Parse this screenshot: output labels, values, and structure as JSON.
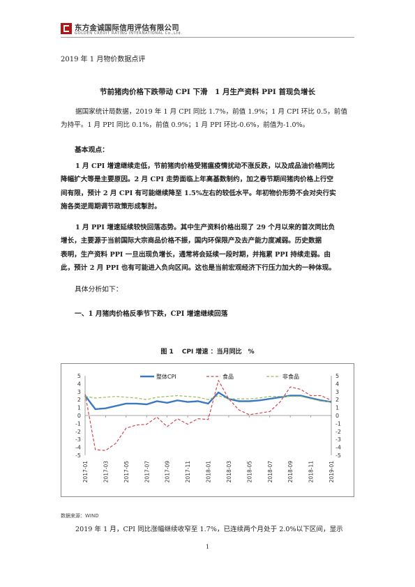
{
  "header": {
    "company_cn": "东方金诚国际信用评估有限公司",
    "company_en": "GOLDEN CREDIT RATING INTERNATIONAL Co.,Ltd.",
    "logo_color": "#b01818"
  },
  "doc": {
    "date_title": "2019 年 1 月物价数据点评",
    "main_title": "节前猪肉价格下跌带动 CPI 下滑　1 月生产资料 PPI 首现负增长",
    "intro": [
      "据国家统计局数据，2019 年 1 月 CPI 同比 1.7%，前值 1.9%；1 月 CPI 环比 0.5，前值",
      "为持平。1 月 PPI 同比 0.1%，前值 0.9%；1 月 PPI 环比-0.6%，前值为-1.0%。"
    ],
    "views_heading": "基本观点：",
    "view1": [
      "1 月 CPI 增速继续走低，节前猪肉价格受猪瘟疫情扰动不涨反跌，以及成品油价格同比",
      "降幅扩大等是主要原因。2 月 CPI 走势面临上年高基数制约，加之春节期间猪肉价格上行空",
      "间有限，预计 2 月 CPI 有可能继续降至 1.5%左右的较低水平。年初物价形势不会对央行实",
      "施各类逆周期调节政策形成掣肘。"
    ],
    "view2": [
      "1 月 PPI 增速延续较快回落态势。其中生产资料价格出现了 29 个月以来的首次同比负",
      "增长，主要源于当前国际大宗商品价格不振，国内环保限产及去产能力度减弱。历史数据",
      "表明，生产资料 PPI 一旦出现负增长，通常将会延续一段时期，并拖累 PPI 持续走弱。由",
      "此，预计 2 月 PPI 也有可能进入负向区间。这也是当前宏观经济下行压力加大的一种体现。"
    ],
    "analysis_intro": "具体分析如下：",
    "section1_heading": "一、1 月猪肉价格反季节下跌，CPI 增速继续回落",
    "figure_title": "图 1　 CPI 增速 ：当月同比　%",
    "source": "数据来源：WIND",
    "bottom_text": "2019 年 1 月，CPI 同比涨幅继续收窄至 1.7%，已连续两个月处于 2.0%以下区间，显示",
    "page_number": "1"
  },
  "chart_data": {
    "type": "line",
    "title": "图 1　 CPI 增速 ：当月同比　%",
    "x": [
      "2017-01",
      "2017-02",
      "2017-03",
      "2017-04",
      "2017-05",
      "2017-06",
      "2017-07",
      "2017-08",
      "2017-09",
      "2017-10",
      "2017-11",
      "2017-12",
      "2018-01",
      "2018-02",
      "2018-03",
      "2018-04",
      "2018-05",
      "2018-06",
      "2018-07",
      "2018-08",
      "2018-09",
      "2018-10",
      "2018-11",
      "2018-12",
      "2019-01"
    ],
    "x_tick_labels": [
      "2017-01",
      "2017-03",
      "2017-05",
      "2017-07",
      "2017-09",
      "2017-11",
      "2018-01",
      "2018-03",
      "2018-05",
      "2018-07",
      "2018-09",
      "2018-11",
      "2019-01"
    ],
    "y_ticks": [
      -5,
      -4,
      -3,
      -2,
      -1,
      0,
      1,
      2,
      3,
      4,
      5
    ],
    "ylim": [
      -5,
      5
    ],
    "legend_position": "top",
    "series": [
      {
        "name": "整体CPI",
        "color": "#3b78c2",
        "dash": "solid",
        "values": [
          2.5,
          0.8,
          0.9,
          1.2,
          1.5,
          1.5,
          1.4,
          1.8,
          1.6,
          1.9,
          1.7,
          1.8,
          1.5,
          2.9,
          2.1,
          1.8,
          1.8,
          1.9,
          2.1,
          2.3,
          2.5,
          2.5,
          2.2,
          1.9,
          1.7
        ]
      },
      {
        "name": "食品",
        "color": "#d0454a",
        "dash": "dashed",
        "values": [
          2.7,
          -4.3,
          -4.4,
          -3.5,
          -1.6,
          -1.2,
          -1.1,
          -0.2,
          -1.4,
          -0.4,
          -1.1,
          -0.4,
          -0.5,
          4.4,
          2.1,
          0.7,
          0.1,
          0.3,
          0.5,
          1.7,
          3.6,
          3.3,
          2.5,
          2.5,
          1.9
        ]
      },
      {
        "name": "非食品",
        "color": "#9bbb59",
        "dash": "dashed",
        "values": [
          2.4,
          2.2,
          2.3,
          2.4,
          2.3,
          2.2,
          2.0,
          2.3,
          2.4,
          2.5,
          2.4,
          2.3,
          2.0,
          2.5,
          2.1,
          2.1,
          2.1,
          2.2,
          2.4,
          2.4,
          2.4,
          2.4,
          2.1,
          1.8,
          1.7
        ]
      }
    ]
  }
}
